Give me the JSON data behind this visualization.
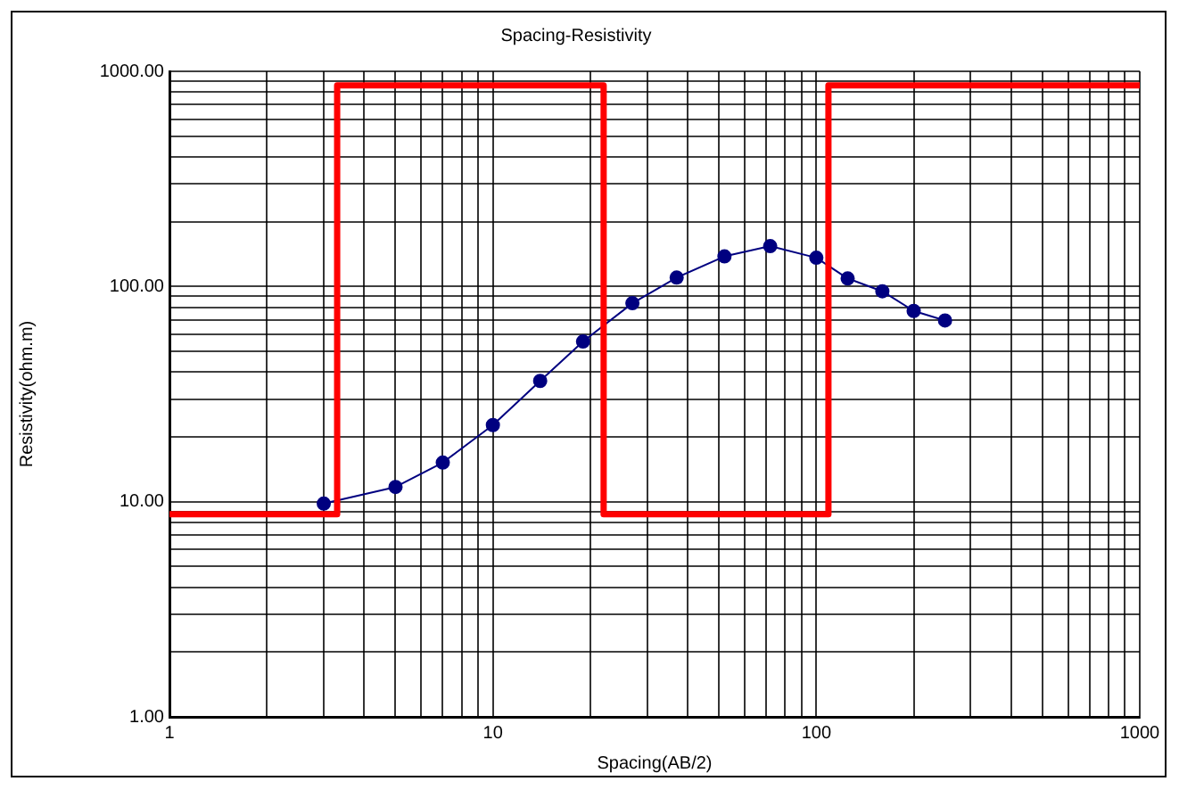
{
  "chart_data": {
    "type": "line",
    "title": "Spacing-Resistivity",
    "xlabel": "Spacing(AB/2)",
    "ylabel": "Resistivity(ohm.m)",
    "log": "xy",
    "grid": true,
    "legend": false,
    "xlim": [
      1,
      1000
    ],
    "ylim": [
      1,
      1000
    ],
    "xticks": [
      1,
      {
        "value": 2,
        "label": null
      },
      {
        "value": 3,
        "label": null
      },
      {
        "value": 4,
        "label": null
      },
      {
        "value": 5,
        "label": null
      },
      {
        "value": 6,
        "label": null
      },
      {
        "value": 7,
        "label": null
      },
      {
        "value": 8,
        "label": null
      },
      {
        "value": 9,
        "label": null
      },
      10,
      {
        "value": 20,
        "label": null
      },
      {
        "value": 30,
        "label": null
      },
      {
        "value": 40,
        "label": null
      },
      {
        "value": 50,
        "label": null
      },
      {
        "value": 60,
        "label": null
      },
      {
        "value": 70,
        "label": null
      },
      {
        "value": 80,
        "label": null
      },
      {
        "value": 90,
        "label": null
      },
      100,
      {
        "value": 200,
        "label": null
      },
      {
        "value": 300,
        "label": null
      },
      {
        "value": 400,
        "label": null
      },
      {
        "value": 500,
        "label": null
      },
      {
        "value": 600,
        "label": null
      },
      {
        "value": 700,
        "label": null
      },
      {
        "value": 800,
        "label": null
      },
      {
        "value": 900,
        "label": null
      },
      1000
    ],
    "yticks": [
      {
        "value": 1,
        "label": "1.00"
      },
      {
        "value": 2,
        "label": null
      },
      {
        "value": 3,
        "label": null
      },
      {
        "value": 4,
        "label": null
      },
      {
        "value": 5,
        "label": null
      },
      {
        "value": 6,
        "label": null
      },
      {
        "value": 7,
        "label": null
      },
      {
        "value": 8,
        "label": null
      },
      {
        "value": 9,
        "label": null
      },
      {
        "value": 10,
        "label": "10.00"
      },
      {
        "value": 20,
        "label": null
      },
      {
        "value": 30,
        "label": null
      },
      {
        "value": 40,
        "label": null
      },
      {
        "value": 50,
        "label": null
      },
      {
        "value": 60,
        "label": null
      },
      {
        "value": 70,
        "label": null
      },
      {
        "value": 80,
        "label": null
      },
      {
        "value": 90,
        "label": null
      },
      {
        "value": 100,
        "label": "100.00"
      },
      {
        "value": 200,
        "label": null
      },
      {
        "value": 300,
        "label": null
      },
      {
        "value": 400,
        "label": null
      },
      {
        "value": 500,
        "label": null
      },
      {
        "value": 600,
        "label": null
      },
      {
        "value": 700,
        "label": null
      },
      {
        "value": 800,
        "label": null
      },
      {
        "value": 900,
        "label": null
      },
      {
        "value": 1000,
        "label": "1000.00"
      }
    ],
    "series": [
      {
        "color": "#ff0000",
        "marker": "none",
        "x": [
          1,
          3.3,
          3.3,
          22,
          22,
          109,
          109,
          1000
        ],
        "values": [
          8.75,
          8.75,
          860,
          860,
          8.75,
          8.75,
          860,
          860
        ]
      },
      {
        "color": "#000080",
        "marker": "circle",
        "x": [
          3,
          5,
          7,
          10,
          14,
          19,
          27,
          37,
          52,
          72,
          100,
          125,
          160,
          200,
          250
        ],
        "values": [
          9.8,
          11.7,
          15.2,
          22.7,
          36.4,
          55.5,
          83.6,
          110,
          138,
          154,
          136,
          109,
          95,
          77,
          69.5
        ]
      }
    ]
  }
}
